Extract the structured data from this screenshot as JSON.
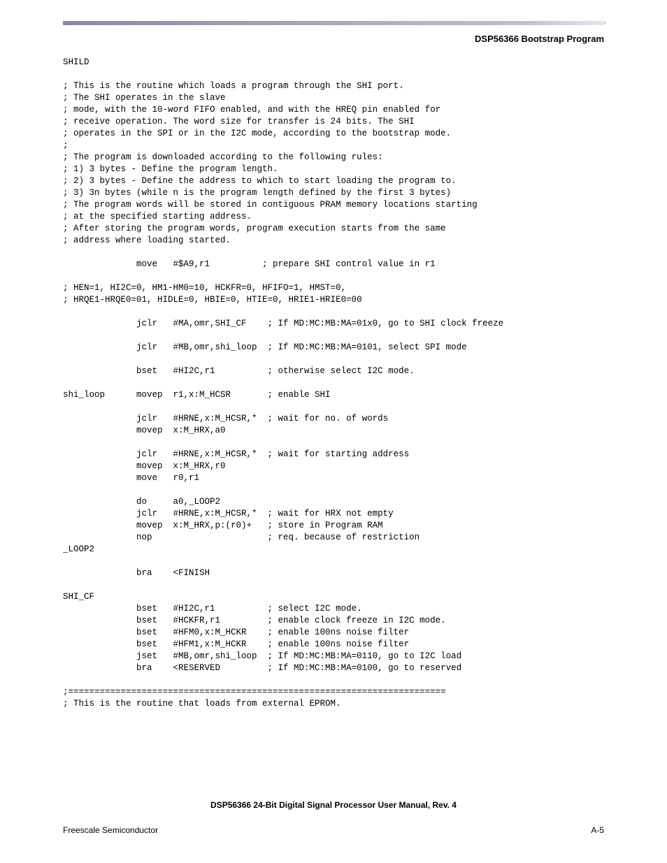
{
  "header": {
    "section_title": "DSP56366 Bootstrap Program"
  },
  "code_lines": [
    "SHILD",
    "",
    "; This is the routine which loads a program through the SHI port.",
    "; The SHI operates in the slave",
    "; mode, with the 10-word FIFO enabled, and with the HREQ pin enabled for",
    "; receive operation. The word size for transfer is 24 bits. The SHI",
    "; operates in the SPI or in the I2C mode, according to the bootstrap mode.",
    ";",
    "; The program is downloaded according to the following rules:",
    "; 1) 3 bytes - Define the program length.",
    "; 2) 3 bytes - Define the address to which to start loading the program to.",
    "; 3) 3n bytes (while n is the program length defined by the first 3 bytes)",
    "; The program words will be stored in contiguous PRAM memory locations starting",
    "; at the specified starting address.",
    "; After storing the program words, program execution starts from the same",
    "; address where loading started.",
    "",
    "              move   #$A9,r1          ; prepare SHI control value in r1",
    "",
    "; HEN=1, HI2C=0, HM1-HM0=10, HCKFR=0, HFIFO=1, HMST=0,",
    "; HRQE1-HRQE0=01, HIDLE=0, HBIE=0, HTIE=0, HRIE1-HRIE0=00",
    "",
    "              jclr   #MA,omr,SHI_CF    ; If MD:MC:MB:MA=01x0, go to SHI clock freeze",
    "",
    "              jclr   #MB,omr,shi_loop  ; If MD:MC:MB:MA=0101, select SPI mode",
    "",
    "              bset   #HI2C,r1          ; otherwise select I2C mode.",
    "",
    "shi_loop      movep  r1,x:M_HCSR       ; enable SHI",
    "",
    "              jclr   #HRNE,x:M_HCSR,*  ; wait for no. of words",
    "              movep  x:M_HRX,a0",
    "",
    "              jclr   #HRNE,x:M_HCSR,*  ; wait for starting address",
    "              movep  x:M_HRX,r0",
    "              move   r0,r1",
    "",
    "              do     a0,_LOOP2",
    "              jclr   #HRNE,x:M_HCSR,*  ; wait for HRX not empty",
    "              movep  x:M_HRX,p:(r0)+   ; store in Program RAM",
    "              nop                      ; req. because of restriction",
    "_LOOP2",
    "",
    "              bra    <FINISH",
    "",
    "SHI_CF",
    "              bset   #HI2C,r1          ; select I2C mode.",
    "              bset   #HCKFR,r1         ; enable clock freeze in I2C mode.",
    "              bset   #HFM0,x:M_HCKR    ; enable 100ns noise filter",
    "              bset   #HFM1,x:M_HCKR    ; enable 100ns noise filter",
    "              jset   #MB,omr,shi_loop  ; If MD:MC:MB:MA=0110, go to I2C load",
    "              bra    <RESERVED         ; If MD:MC:MB:MA=0100, go to reserved",
    "",
    ";========================================================================",
    "; This is the routine that loads from external EPROM."
  ],
  "footer": {
    "doc_title": "DSP56366 24-Bit Digital Signal Processor User Manual, Rev. 4",
    "left": "Freescale Semiconductor",
    "right": "A-5"
  }
}
